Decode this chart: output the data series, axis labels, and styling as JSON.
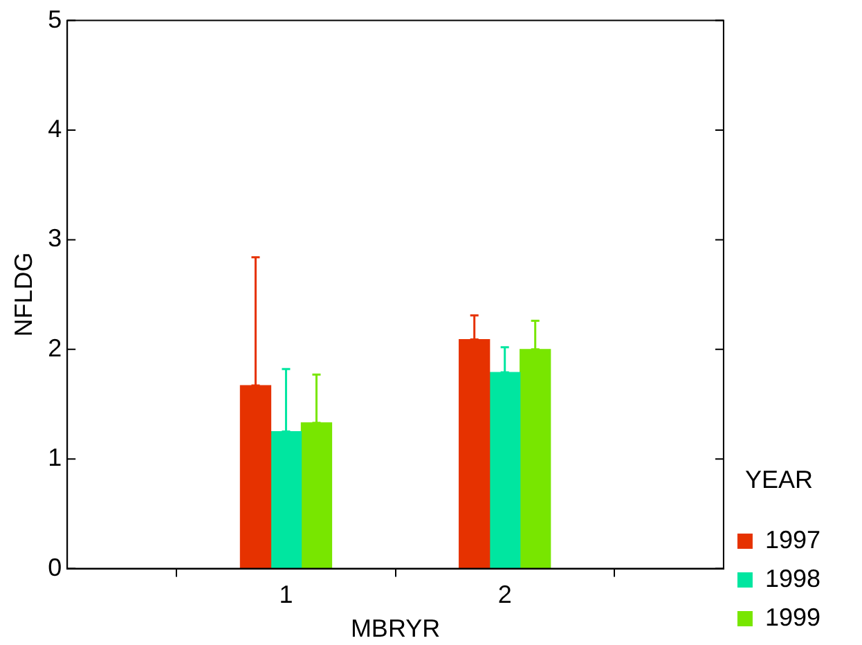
{
  "chart_data": {
    "type": "bar",
    "xlabel": "MBRYR",
    "ylabel": "NFLDG",
    "legend_title": "YEAR",
    "legend": "right",
    "categories": [
      "1",
      "2"
    ],
    "series": [
      {
        "name": "1997",
        "color": "#e63200",
        "values": [
          1.67,
          2.09
        ],
        "errors": [
          [
            1.67,
            2.84
          ],
          [
            2.09,
            2.31
          ]
        ]
      },
      {
        "name": "1998",
        "color": "#00e6a0",
        "values": [
          1.25,
          1.79
        ],
        "errors": [
          [
            1.25,
            1.82
          ],
          [
            1.79,
            2.02
          ]
        ]
      },
      {
        "name": "1999",
        "color": "#78e600",
        "values": [
          1.33,
          2.0
        ],
        "errors": [
          [
            1.33,
            1.77
          ],
          [
            2.0,
            2.26
          ]
        ]
      }
    ],
    "ylim": [
      0,
      5
    ],
    "yticks": [
      0,
      1,
      2,
      3,
      4,
      5
    ]
  }
}
